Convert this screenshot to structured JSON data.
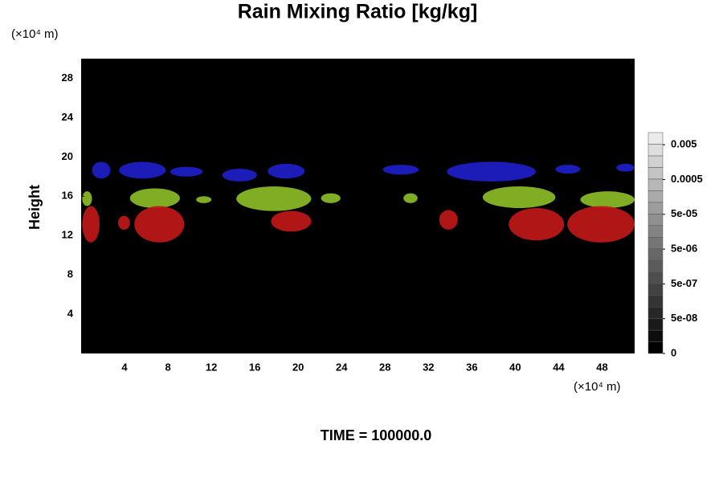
{
  "chart_data": {
    "type": "field",
    "title": "Rain Mixing Ratio [kg/kg]",
    "ylabel": "Height",
    "y_unit": "(×10⁴ m)",
    "x_unit": "(×10⁴ m)",
    "footer": "TIME = 100000.0",
    "xlim": [
      0,
      51
    ],
    "ylim": [
      0,
      30
    ],
    "xticks": [
      4,
      8,
      12,
      16,
      20,
      24,
      28,
      32,
      36,
      40,
      44,
      48
    ],
    "yticks": [
      4,
      8,
      12,
      16,
      20,
      24,
      28
    ],
    "colorbar_ticks": [
      0,
      {
        "value": 5e-08,
        "label": "5e-08"
      },
      {
        "value": 5e-07,
        "label": "5e-07"
      },
      {
        "value": 5e-06,
        "label": "5e-06"
      },
      {
        "value": 5e-05,
        "label": "5e-05"
      },
      0.0005,
      0.005
    ],
    "regions": [
      {
        "color": "#1e1ec8",
        "x": [
          1.0,
          2.7
        ],
        "y": [
          17.8,
          19.5
        ]
      },
      {
        "color": "#1e1ec8",
        "x": [
          3.5,
          7.8
        ],
        "y": [
          17.8,
          19.5
        ]
      },
      {
        "color": "#1e1ec8",
        "x": [
          8.2,
          11.2
        ],
        "y": [
          18.0,
          19.0
        ]
      },
      {
        "color": "#1e1ec8",
        "x": [
          13.0,
          16.2
        ],
        "y": [
          17.5,
          18.8
        ]
      },
      {
        "color": "#1e1ec8",
        "x": [
          17.2,
          20.6
        ],
        "y": [
          17.8,
          19.3
        ]
      },
      {
        "color": "#1e1ec8",
        "x": [
          27.8,
          31.1
        ],
        "y": [
          18.2,
          19.2
        ]
      },
      {
        "color": "#1e1ec8",
        "x": [
          33.7,
          41.9
        ],
        "y": [
          17.5,
          19.5
        ]
      },
      {
        "color": "#1e1ec8",
        "x": [
          43.7,
          46.0
        ],
        "y": [
          18.3,
          19.2
        ]
      },
      {
        "color": "#1e1ec8",
        "x": [
          49.3,
          51.0
        ],
        "y": [
          18.5,
          19.3
        ]
      },
      {
        "color": "#8cbc28",
        "x": [
          0.1,
          1.0
        ],
        "y": [
          15.0,
          16.5
        ]
      },
      {
        "color": "#8cbc28",
        "x": [
          4.5,
          9.1
        ],
        "y": [
          14.8,
          16.8
        ]
      },
      {
        "color": "#8cbc28",
        "x": [
          10.6,
          12.0
        ],
        "y": [
          15.3,
          16.0
        ]
      },
      {
        "color": "#8cbc28",
        "x": [
          14.3,
          21.2
        ],
        "y": [
          14.5,
          17.0
        ]
      },
      {
        "color": "#8cbc28",
        "x": [
          22.1,
          23.9
        ],
        "y": [
          15.3,
          16.3
        ]
      },
      {
        "color": "#8cbc28",
        "x": [
          29.7,
          31.0
        ],
        "y": [
          15.3,
          16.3
        ]
      },
      {
        "color": "#8cbc28",
        "x": [
          37.0,
          43.7
        ],
        "y": [
          14.8,
          17.0
        ]
      },
      {
        "color": "#8cbc28",
        "x": [
          46.0,
          51.0
        ],
        "y": [
          14.8,
          16.5
        ]
      },
      {
        "color": "#c01818",
        "x": [
          0.1,
          1.7
        ],
        "y": [
          11.3,
          15.0
        ]
      },
      {
        "color": "#c01818",
        "x": [
          3.4,
          4.5
        ],
        "y": [
          12.6,
          14.0
        ]
      },
      {
        "color": "#c01818",
        "x": [
          4.9,
          9.5
        ],
        "y": [
          11.3,
          15.0
        ]
      },
      {
        "color": "#c01818",
        "x": [
          17.5,
          21.2
        ],
        "y": [
          12.4,
          14.5
        ]
      },
      {
        "color": "#c01818",
        "x": [
          33.0,
          34.7
        ],
        "y": [
          12.6,
          14.6
        ]
      },
      {
        "color": "#c01818",
        "x": [
          39.4,
          44.5
        ],
        "y": [
          11.5,
          14.8
        ]
      },
      {
        "color": "#c01818",
        "x": [
          44.8,
          51.0
        ],
        "y": [
          11.3,
          15.0
        ]
      }
    ]
  }
}
